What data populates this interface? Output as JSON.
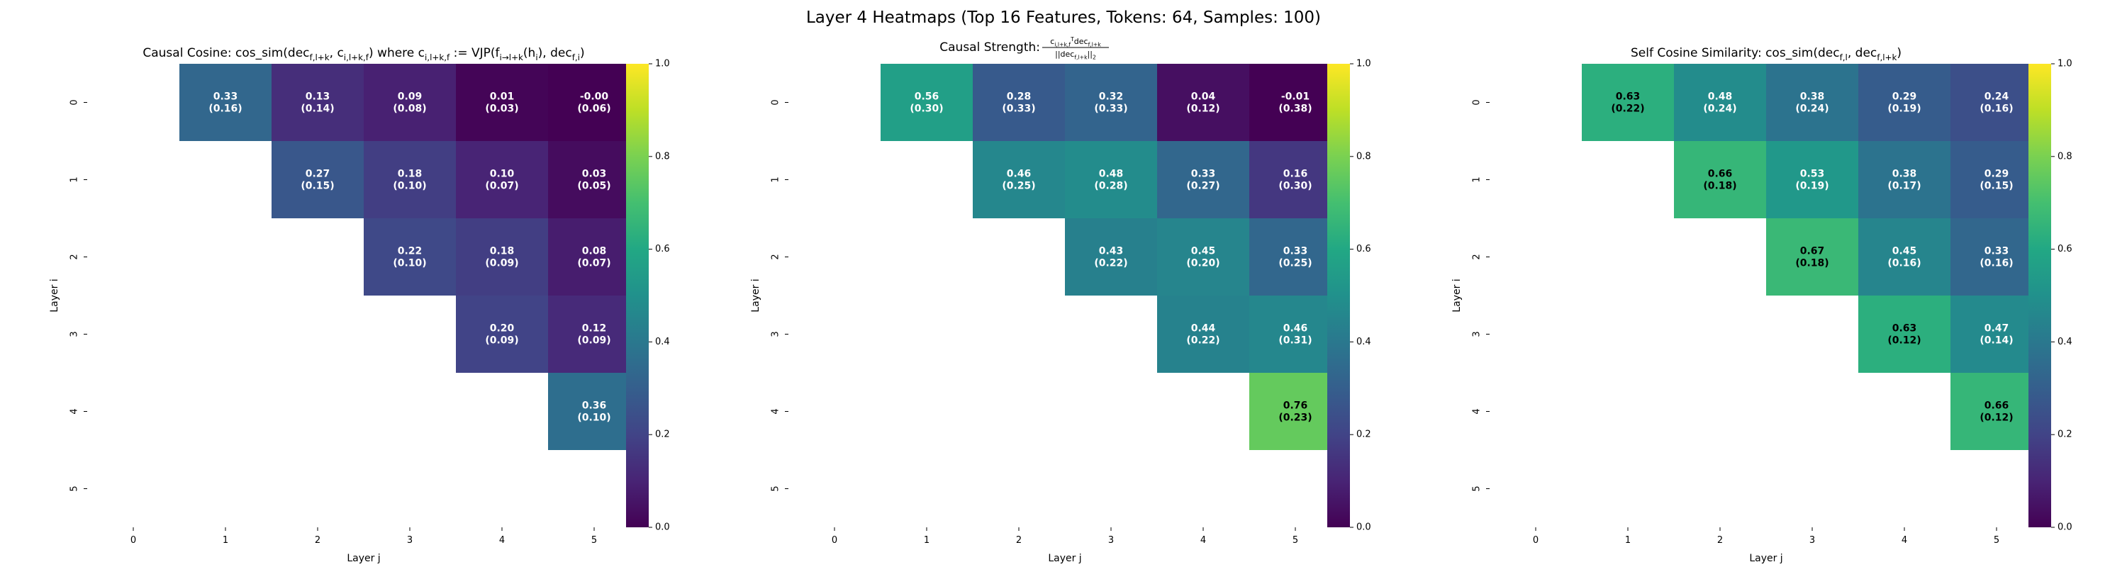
{
  "figure_title": "Layer 4 Heatmaps (Top 16 Features, Tokens: 64, Samples: 100)",
  "colorbar_ticks": [
    "0.0",
    "0.2",
    "0.4",
    "0.6",
    "0.8",
    "1.0"
  ],
  "chart_data": [
    {
      "type": "heatmap",
      "title": "Causal Cosine: cos_sim(dec_{f,l+k}, c_{i,l+k,f}) where c_{i,l+k,f} := VJP(f_{i→l+k}(h_i), dec_{f,i})",
      "title_parts": [
        {
          "t": "Causal Cosine: cos_sim(dec"
        },
        {
          "t": "f,l+k",
          "sub": true
        },
        {
          "t": ", c"
        },
        {
          "t": "i,l+k,f",
          "sub": true
        },
        {
          "t": ") where c"
        },
        {
          "t": "i,l+k,f",
          "sub": true
        },
        {
          "t": " := VJP(f"
        },
        {
          "t": "i→l+k",
          "sub": true
        },
        {
          "t": "(h"
        },
        {
          "t": "i",
          "sub": true
        },
        {
          "t": "), dec"
        },
        {
          "t": "f,i",
          "sub": true
        },
        {
          "t": ")"
        }
      ],
      "xlabel": "Layer j",
      "ylabel": "Layer i",
      "x_ticks": [
        "0",
        "1",
        "2",
        "3",
        "4",
        "5"
      ],
      "y_ticks": [
        "0",
        "1",
        "2",
        "3",
        "4",
        "5"
      ],
      "vmin": 0.0,
      "vmax": 1.0,
      "colormap": "viridis",
      "cells": [
        {
          "i": 0,
          "j": 1,
          "value": 0.33,
          "label": "0.33",
          "sd": "(0.16)"
        },
        {
          "i": 0,
          "j": 2,
          "value": 0.13,
          "label": "0.13",
          "sd": "(0.14)"
        },
        {
          "i": 0,
          "j": 3,
          "value": 0.09,
          "label": "0.09",
          "sd": "(0.08)"
        },
        {
          "i": 0,
          "j": 4,
          "value": 0.01,
          "label": "0.01",
          "sd": "(0.03)"
        },
        {
          "i": 0,
          "j": 5,
          "value": -0.0,
          "label": "-0.00",
          "sd": "(0.06)"
        },
        {
          "i": 1,
          "j": 2,
          "value": 0.27,
          "label": "0.27",
          "sd": "(0.15)"
        },
        {
          "i": 1,
          "j": 3,
          "value": 0.18,
          "label": "0.18",
          "sd": "(0.10)"
        },
        {
          "i": 1,
          "j": 4,
          "value": 0.1,
          "label": "0.10",
          "sd": "(0.07)"
        },
        {
          "i": 1,
          "j": 5,
          "value": 0.03,
          "label": "0.03",
          "sd": "(0.05)"
        },
        {
          "i": 2,
          "j": 3,
          "value": 0.22,
          "label": "0.22",
          "sd": "(0.10)"
        },
        {
          "i": 2,
          "j": 4,
          "value": 0.18,
          "label": "0.18",
          "sd": "(0.09)"
        },
        {
          "i": 2,
          "j": 5,
          "value": 0.08,
          "label": "0.08",
          "sd": "(0.07)"
        },
        {
          "i": 3,
          "j": 4,
          "value": 0.2,
          "label": "0.20",
          "sd": "(0.09)"
        },
        {
          "i": 3,
          "j": 5,
          "value": 0.12,
          "label": "0.12",
          "sd": "(0.09)"
        },
        {
          "i": 4,
          "j": 5,
          "value": 0.36,
          "label": "0.36",
          "sd": "(0.10)"
        }
      ]
    },
    {
      "type": "heatmap",
      "title": "Causal Strength: c_{i,l+k,f}^T dec_{f,l+k} / ||dec_{f,l+k}||_2",
      "title_prefix": "Causal Strength: ",
      "title_numer": [
        {
          "t": "c"
        },
        {
          "t": "i,l+k,f",
          "sub": true
        },
        {
          "t": "T",
          "sup": true
        },
        {
          "t": "dec"
        },
        {
          "t": "f,l+k",
          "sub": true
        }
      ],
      "title_denom": [
        {
          "t": "||dec"
        },
        {
          "t": "f,l+k",
          "sub": true
        },
        {
          "t": "||"
        },
        {
          "t": "2",
          "sub": true
        }
      ],
      "xlabel": "Layer j",
      "ylabel": "Layer i",
      "x_ticks": [
        "0",
        "1",
        "2",
        "3",
        "4",
        "5"
      ],
      "y_ticks": [
        "0",
        "1",
        "2",
        "3",
        "4",
        "5"
      ],
      "vmin": 0.0,
      "vmax": 1.0,
      "colormap": "viridis",
      "cells": [
        {
          "i": 0,
          "j": 1,
          "value": 0.56,
          "label": "0.56",
          "sd": "(0.30)"
        },
        {
          "i": 0,
          "j": 2,
          "value": 0.28,
          "label": "0.28",
          "sd": "(0.33)"
        },
        {
          "i": 0,
          "j": 3,
          "value": 0.32,
          "label": "0.32",
          "sd": "(0.33)"
        },
        {
          "i": 0,
          "j": 4,
          "value": 0.04,
          "label": "0.04",
          "sd": "(0.12)"
        },
        {
          "i": 0,
          "j": 5,
          "value": -0.01,
          "label": "-0.01",
          "sd": "(0.38)"
        },
        {
          "i": 1,
          "j": 2,
          "value": 0.46,
          "label": "0.46",
          "sd": "(0.25)"
        },
        {
          "i": 1,
          "j": 3,
          "value": 0.48,
          "label": "0.48",
          "sd": "(0.28)"
        },
        {
          "i": 1,
          "j": 4,
          "value": 0.33,
          "label": "0.33",
          "sd": "(0.27)"
        },
        {
          "i": 1,
          "j": 5,
          "value": 0.16,
          "label": "0.16",
          "sd": "(0.30)"
        },
        {
          "i": 2,
          "j": 3,
          "value": 0.43,
          "label": "0.43",
          "sd": "(0.22)"
        },
        {
          "i": 2,
          "j": 4,
          "value": 0.45,
          "label": "0.45",
          "sd": "(0.20)"
        },
        {
          "i": 2,
          "j": 5,
          "value": 0.33,
          "label": "0.33",
          "sd": "(0.25)"
        },
        {
          "i": 3,
          "j": 4,
          "value": 0.44,
          "label": "0.44",
          "sd": "(0.22)"
        },
        {
          "i": 3,
          "j": 5,
          "value": 0.46,
          "label": "0.46",
          "sd": "(0.31)"
        },
        {
          "i": 4,
          "j": 5,
          "value": 0.76,
          "label": "0.76",
          "sd": "(0.23)"
        }
      ]
    },
    {
      "type": "heatmap",
      "title": "Self Cosine Similarity: cos_sim(dec_{f,l}, dec_{f,l+k})",
      "title_parts": [
        {
          "t": "Self Cosine Similarity: cos_sim(dec"
        },
        {
          "t": "f,l",
          "sub": true
        },
        {
          "t": ", dec"
        },
        {
          "t": "f,l+k",
          "sub": true
        },
        {
          "t": ")"
        }
      ],
      "xlabel": "Layer j",
      "ylabel": "Layer i",
      "x_ticks": [
        "0",
        "1",
        "2",
        "3",
        "4",
        "5"
      ],
      "y_ticks": [
        "0",
        "1",
        "2",
        "3",
        "4",
        "5"
      ],
      "vmin": 0.0,
      "vmax": 1.0,
      "colormap": "viridis",
      "cells": [
        {
          "i": 0,
          "j": 1,
          "value": 0.63,
          "label": "0.63",
          "sd": "(0.22)"
        },
        {
          "i": 0,
          "j": 2,
          "value": 0.48,
          "label": "0.48",
          "sd": "(0.24)"
        },
        {
          "i": 0,
          "j": 3,
          "value": 0.38,
          "label": "0.38",
          "sd": "(0.24)"
        },
        {
          "i": 0,
          "j": 4,
          "value": 0.29,
          "label": "0.29",
          "sd": "(0.19)"
        },
        {
          "i": 0,
          "j": 5,
          "value": 0.24,
          "label": "0.24",
          "sd": "(0.16)"
        },
        {
          "i": 1,
          "j": 2,
          "value": 0.66,
          "label": "0.66",
          "sd": "(0.18)"
        },
        {
          "i": 1,
          "j": 3,
          "value": 0.53,
          "label": "0.53",
          "sd": "(0.19)"
        },
        {
          "i": 1,
          "j": 4,
          "value": 0.38,
          "label": "0.38",
          "sd": "(0.17)"
        },
        {
          "i": 1,
          "j": 5,
          "value": 0.29,
          "label": "0.29",
          "sd": "(0.15)"
        },
        {
          "i": 2,
          "j": 3,
          "value": 0.67,
          "label": "0.67",
          "sd": "(0.18)"
        },
        {
          "i": 2,
          "j": 4,
          "value": 0.45,
          "label": "0.45",
          "sd": "(0.16)"
        },
        {
          "i": 2,
          "j": 5,
          "value": 0.33,
          "label": "0.33",
          "sd": "(0.16)"
        },
        {
          "i": 3,
          "j": 4,
          "value": 0.63,
          "label": "0.63",
          "sd": "(0.12)"
        },
        {
          "i": 3,
          "j": 5,
          "value": 0.47,
          "label": "0.47",
          "sd": "(0.14)"
        },
        {
          "i": 4,
          "j": 5,
          "value": 0.66,
          "label": "0.66",
          "sd": "(0.12)"
        }
      ]
    }
  ]
}
